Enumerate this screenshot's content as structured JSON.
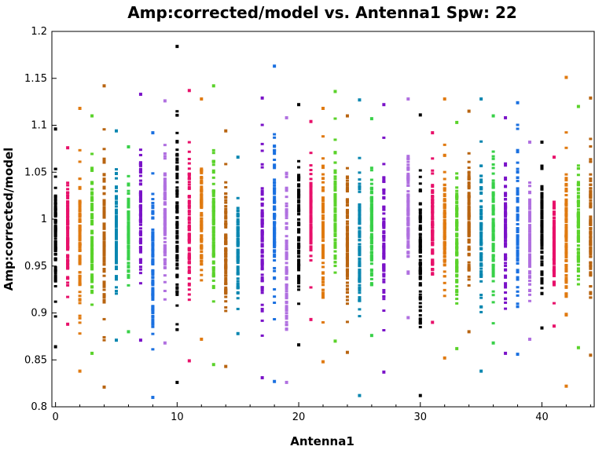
{
  "chart_data": {
    "type": "scatter",
    "title": "Amp:corrected/model vs. Antenna1 Spw: 22",
    "xlabel": "Antenna1",
    "ylabel": "Amp:corrected/model",
    "xlim": [
      -0.3,
      44.3
    ],
    "ylim": [
      0.8,
      1.2
    ],
    "xticks": [
      0,
      10,
      20,
      30,
      40
    ],
    "yticks": [
      0.8,
      0.85,
      0.9,
      0.95,
      1,
      1.05,
      1.1,
      1.15,
      1.2
    ],
    "xtick_labels": [
      "0",
      "10",
      "20",
      "30",
      "40"
    ],
    "ytick_labels": [
      "0.8",
      "0.85",
      "0.9",
      "0.95",
      "1",
      "1.05",
      "1.1",
      "1.15",
      "1.2"
    ],
    "grid": false,
    "legend": "none",
    "palette": [
      "#000000",
      "#e8106a",
      "#e07a10",
      "#5ad22a",
      "#b86410",
      "#0a87b0",
      "#38d048",
      "#7a12c8",
      "#1a70e0",
      "#b070e0"
    ],
    "antennas": [
      {
        "x": 0,
        "min": 0.864,
        "max": 1.096,
        "color": "#000000"
      },
      {
        "x": 1,
        "min": 0.888,
        "max": 1.076,
        "color": "#e8106a"
      },
      {
        "x": 2,
        "min": 0.838,
        "max": 1.118,
        "color": "#e07a10"
      },
      {
        "x": 3,
        "min": 0.857,
        "max": 1.11,
        "color": "#5ad22a"
      },
      {
        "x": 4,
        "min": 0.821,
        "max": 1.142,
        "color": "#b86410"
      },
      {
        "x": 5,
        "min": 0.871,
        "max": 1.094,
        "color": "#0a87b0"
      },
      {
        "x": 6,
        "min": 0.88,
        "max": 1.077,
        "color": "#38d048"
      },
      {
        "x": 7,
        "min": 0.871,
        "max": 1.133,
        "color": "#7a12c8"
      },
      {
        "x": 8,
        "min": 0.81,
        "max": 1.092,
        "color": "#1a70e0"
      },
      {
        "x": 9,
        "min": 0.868,
        "max": 1.126,
        "color": "#b070e0"
      },
      {
        "x": 10,
        "min": 0.826,
        "max": 1.184,
        "color": "#000000"
      },
      {
        "x": 11,
        "min": 0.849,
        "max": 1.137,
        "color": "#e8106a"
      },
      {
        "x": 12,
        "min": 0.872,
        "max": 1.128,
        "color": "#e07a10"
      },
      {
        "x": 13,
        "min": 0.845,
        "max": 1.142,
        "color": "#5ad22a"
      },
      {
        "x": 14,
        "min": 0.843,
        "max": 1.094,
        "color": "#b86410"
      },
      {
        "x": 15,
        "min": 0.878,
        "max": 1.066,
        "color": "#0a87b0"
      },
      {
        "x": 17,
        "min": 0.831,
        "max": 1.129,
        "color": "#7a12c8"
      },
      {
        "x": 18,
        "min": 0.827,
        "max": 1.163,
        "color": "#1a70e0"
      },
      {
        "x": 19,
        "min": 0.826,
        "max": 1.108,
        "color": "#b070e0"
      },
      {
        "x": 20,
        "min": 0.866,
        "max": 1.122,
        "color": "#000000"
      },
      {
        "x": 21,
        "min": 0.893,
        "max": 1.104,
        "color": "#e8106a"
      },
      {
        "x": 22,
        "min": 0.848,
        "max": 1.118,
        "color": "#e07a10"
      },
      {
        "x": 23,
        "min": 0.87,
        "max": 1.136,
        "color": "#5ad22a"
      },
      {
        "x": 24,
        "min": 0.858,
        "max": 1.11,
        "color": "#b86410"
      },
      {
        "x": 25,
        "min": 0.812,
        "max": 1.127,
        "color": "#0a87b0"
      },
      {
        "x": 26,
        "min": 0.876,
        "max": 1.107,
        "color": "#38d048"
      },
      {
        "x": 27,
        "min": 0.837,
        "max": 1.122,
        "color": "#7a12c8"
      },
      {
        "x": 29,
        "min": 0.895,
        "max": 1.128,
        "color": "#b070e0"
      },
      {
        "x": 30,
        "min": 0.812,
        "max": 1.111,
        "color": "#000000"
      },
      {
        "x": 31,
        "min": 0.89,
        "max": 1.092,
        "color": "#e8106a"
      },
      {
        "x": 32,
        "min": 0.852,
        "max": 1.128,
        "color": "#e07a10"
      },
      {
        "x": 33,
        "min": 0.862,
        "max": 1.103,
        "color": "#5ad22a"
      },
      {
        "x": 34,
        "min": 0.88,
        "max": 1.115,
        "color": "#b86410"
      },
      {
        "x": 35,
        "min": 0.838,
        "max": 1.128,
        "color": "#0a87b0"
      },
      {
        "x": 36,
        "min": 0.868,
        "max": 1.11,
        "color": "#38d048"
      },
      {
        "x": 37,
        "min": 0.857,
        "max": 1.108,
        "color": "#7a12c8"
      },
      {
        "x": 38,
        "min": 0.856,
        "max": 1.124,
        "color": "#1a70e0"
      },
      {
        "x": 39,
        "min": 0.872,
        "max": 1.082,
        "color": "#b070e0"
      },
      {
        "x": 40,
        "min": 0.884,
        "max": 1.082,
        "color": "#000000"
      },
      {
        "x": 41,
        "min": 0.886,
        "max": 1.066,
        "color": "#e8106a"
      },
      {
        "x": 42,
        "min": 0.822,
        "max": 1.151,
        "color": "#e07a10"
      },
      {
        "x": 43,
        "min": 0.863,
        "max": 1.12,
        "color": "#5ad22a"
      },
      {
        "x": 44,
        "min": 0.855,
        "max": 1.129,
        "color": "#b86410"
      }
    ]
  }
}
